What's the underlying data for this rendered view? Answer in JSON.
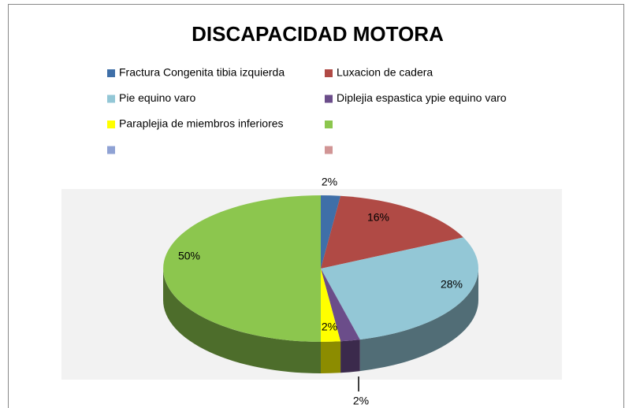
{
  "chart_data": {
    "type": "pie3d",
    "title": "DISCAPACIDAD MOTORA",
    "categories": [
      "Fractura Congenita tibia izquierda",
      "Luxacion de cadera",
      "Pie equino varo",
      "Diplejia espastica ypie equino varo",
      "Paraplejia de miembros inferiores",
      null,
      null,
      null
    ],
    "values": [
      2,
      16,
      28,
      2,
      2,
      50,
      0,
      0
    ],
    "value_labels": [
      "2%",
      "16%",
      "28%",
      "2%",
      "2%",
      "50%",
      null,
      null
    ],
    "colors": [
      "#3f6fa8",
      "#b04a45",
      "#93c7d6",
      "#6b4d8a",
      "#ffff00",
      "#8cc64e",
      "#8fa2d4",
      "#d19595"
    ],
    "legend": "top"
  }
}
